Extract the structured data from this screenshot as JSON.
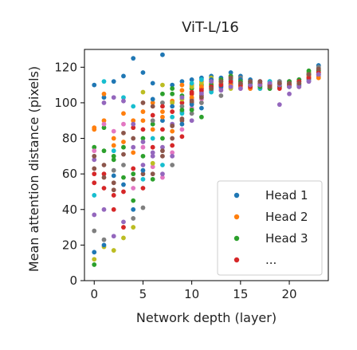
{
  "chart_data": {
    "type": "scatter",
    "title": "ViT-L/16",
    "xlabel": "Network depth (layer)",
    "ylabel": "Mean attention distance (pixels)",
    "xlim": [
      -1,
      24
    ],
    "ylim": [
      0,
      130
    ],
    "xticks": [
      "0",
      "5",
      "10",
      "15",
      "20"
    ],
    "xtick_values": [
      0,
      5,
      10,
      15,
      20
    ],
    "yticks": [
      "0",
      "20",
      "40",
      "60",
      "80",
      "100",
      "120"
    ],
    "ytick_values": [
      0,
      20,
      40,
      60,
      80,
      100,
      120
    ],
    "grid": false,
    "legend_placement": "lower-right",
    "legend": [
      {
        "label": "Head 1",
        "color": "#1f77b4"
      },
      {
        "label": "Head 2",
        "color": "#ff7f0e"
      },
      {
        "label": "Head 3",
        "color": "#2ca02c"
      },
      {
        "label": "...",
        "color": "#d62728"
      }
    ],
    "palette": [
      "#1f77b4",
      "#ff7f0e",
      "#2ca02c",
      "#d62728",
      "#9467bd",
      "#8c564b",
      "#e377c2",
      "#7f7f7f",
      "#bcbd22",
      "#17becf"
    ],
    "layers": [
      {
        "x": 0,
        "values": [
          110,
          86,
          75,
          55,
          37,
          63,
          73,
          28,
          12,
          48,
          16,
          85,
          9,
          60,
          68,
          70
        ]
      },
      {
        "x": 1,
        "values": [
          103,
          90,
          86,
          60,
          40,
          58,
          88,
          23,
          19,
          112,
          20,
          105,
          73,
          52,
          100,
          65
        ]
      },
      {
        "x": 2,
        "values": [
          112,
          80,
          70,
          40,
          25,
          55,
          84,
          62,
          17,
          73,
          59,
          76,
          68,
          48,
          103,
          51
        ]
      },
      {
        "x": 3,
        "values": [
          115,
          94,
          75,
          50,
          33,
          83,
          88,
          65,
          24,
          103,
          54,
          78,
          58,
          30,
          101,
          71
        ]
      },
      {
        "x": 4,
        "values": [
          125,
          90,
          45,
          63,
          75,
          80,
          52,
          35,
          30,
          98,
          40,
          72,
          60,
          86,
          88,
          57
        ]
      },
      {
        "x": 5,
        "values": [
          117,
          95,
          80,
          85,
          65,
          60,
          75,
          41,
          106,
          57,
          62,
          90,
          70,
          52,
          78,
          100
        ]
      },
      {
        "x": 6,
        "values": [
          111,
          100,
          88,
          75,
          70,
          60,
          64,
          90,
          66,
          80,
          102,
          85,
          57,
          93,
          72,
          98
        ]
      },
      {
        "x": 7,
        "values": [
          127,
          95,
          105,
          85,
          75,
          70,
          58,
          100,
          110,
          65,
          90,
          92,
          80,
          98,
          60,
          73
        ]
      },
      {
        "x": 8,
        "values": [
          110,
          101,
          105,
          95,
          88,
          80,
          72,
          65,
          100,
          92,
          98,
          84,
          108,
          76,
          70,
          87
        ]
      },
      {
        "x": 9,
        "values": [
          112,
          107,
          104,
          100,
          95,
          90,
          85,
          98,
          102,
          94,
          88,
          110,
          96,
          81,
          103,
          91
        ]
      },
      {
        "x": 10,
        "values": [
          113,
          110,
          108,
          105,
          102,
          100,
          97,
          94,
          109,
          111,
          99,
          103,
          96,
          106,
          90,
          101
        ]
      },
      {
        "x": 11,
        "values": [
          114,
          112,
          110,
          108,
          106,
          104,
          102,
          100,
          111,
          113,
          97,
          109,
          92,
          107,
          105,
          103
        ]
      },
      {
        "x": 12,
        "values": [
          115,
          113,
          111,
          109,
          110,
          112,
          108,
          107,
          114,
          106,
          113,
          111,
          110,
          109,
          112,
          108
        ]
      },
      {
        "x": 13,
        "values": [
          114,
          112,
          110,
          109,
          111,
          113,
          108,
          104,
          112,
          110,
          109,
          111,
          113,
          110,
          107,
          112
        ]
      },
      {
        "x": 14,
        "values": [
          117,
          115,
          113,
          111,
          110,
          109,
          112,
          114,
          108,
          113,
          111,
          110,
          115,
          112,
          109,
          114
        ]
      },
      {
        "x": 15,
        "values": [
          115,
          113,
          111,
          110,
          109,
          112,
          108,
          114,
          110,
          111,
          113,
          109,
          112,
          110,
          108,
          111
        ]
      },
      {
        "x": 16,
        "values": [
          113,
          111,
          110,
          109,
          108,
          112,
          110,
          111,
          109,
          112,
          110,
          108,
          111,
          109,
          110,
          112
        ]
      },
      {
        "x": 17,
        "values": [
          112,
          110,
          109,
          108,
          111,
          110,
          112,
          109,
          110,
          108,
          111,
          110,
          109,
          111,
          110,
          112
        ]
      },
      {
        "x": 18,
        "values": [
          112,
          110,
          109,
          111,
          110,
          108,
          109,
          110,
          111,
          112,
          110,
          109,
          108,
          110,
          111,
          109
        ]
      },
      {
        "x": 19,
        "values": [
          112,
          111,
          110,
          109,
          99,
          110,
          111,
          112,
          109,
          110,
          111,
          110,
          109,
          108,
          110,
          111
        ]
      },
      {
        "x": 20,
        "values": [
          112,
          111,
          110,
          109,
          105,
          110,
          111,
          112,
          110,
          109,
          111,
          110,
          112,
          110,
          109,
          111
        ]
      },
      {
        "x": 21,
        "values": [
          113,
          112,
          110,
          109,
          111,
          112,
          113,
          110,
          111,
          112,
          110,
          111,
          113,
          112,
          109,
          111
        ]
      },
      {
        "x": 22,
        "values": [
          117,
          115,
          114,
          113,
          112,
          116,
          115,
          114,
          117,
          113,
          116,
          115,
          118,
          114,
          112,
          116
        ]
      },
      {
        "x": 23,
        "values": [
          121,
          119,
          118,
          117,
          115,
          116,
          118,
          120,
          117,
          119,
          116,
          114,
          118,
          117,
          116,
          119
        ]
      }
    ]
  }
}
